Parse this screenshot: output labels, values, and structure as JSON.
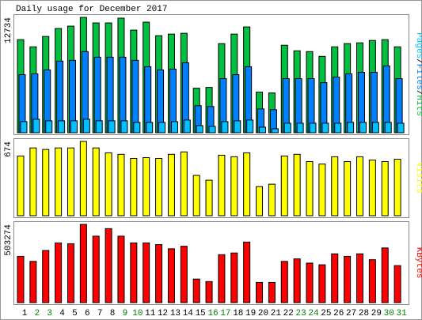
{
  "chart_data": [
    {
      "type": "bar",
      "title": "Daily usage for December 2017",
      "ylim": [
        0,
        12734
      ],
      "yticks": [
        12734
      ],
      "legend_separator": "/",
      "series": [
        {
          "name": "Pages",
          "color": "#00c0ff",
          "values": [
            1229,
            1493,
            1317,
            1317,
            1317,
            1493,
            1317,
            1317,
            1317,
            1142,
            1142,
            1142,
            1229,
            1405,
            790,
            703,
            1229,
            1317,
            1405,
            615,
            439,
            1054,
            1054,
            1054,
            1054,
            1054,
            1142,
            1142,
            1142,
            1142,
            1054
          ]
        },
        {
          "name": "Files",
          "color": "#0080ff",
          "values": [
            6411,
            6499,
            6938,
            7904,
            7992,
            8958,
            8343,
            8343,
            8343,
            7992,
            7289,
            6938,
            7026,
            7728,
            2986,
            2898,
            5972,
            6411,
            7289,
            2635,
            2547,
            5972,
            5972,
            5972,
            5533,
            6147,
            6499,
            6674,
            6674,
            7377,
            5972
          ]
        },
        {
          "name": "Hits",
          "color": "#00c040",
          "values": [
            10275,
            9485,
            10626,
            11505,
            11768,
            12734,
            12119,
            12119,
            12650,
            11329,
            12207,
            10714,
            10890,
            10978,
            4918,
            5006,
            9836,
            10890,
            11680,
            4479,
            4391,
            9660,
            9046,
            8958,
            8431,
            9485,
            9836,
            9924,
            10187,
            10275,
            9485
          ]
        }
      ]
    },
    {
      "type": "bar",
      "ylim": [
        0,
        674
      ],
      "yticks": [
        674
      ],
      "series": [
        {
          "name": "Visits",
          "color": "#ffff00",
          "values": [
            542,
            615,
            601,
            615,
            615,
            674,
            615,
            571,
            557,
            520,
            527,
            520,
            557,
            579,
            366,
            322,
            549,
            535,
            571,
            264,
            286,
            542,
            557,
            491,
            469,
            535,
            491,
            535,
            505,
            491,
            513
          ]
        }
      ]
    },
    {
      "type": "bar",
      "ylim": [
        0,
        503274
      ],
      "yticks": [
        503274
      ],
      "categories": [
        "1",
        "2",
        "3",
        "4",
        "5",
        "6",
        "7",
        "8",
        "9",
        "10",
        "11",
        "12",
        "13",
        "14",
        "15",
        "16",
        "17",
        "18",
        "19",
        "20",
        "21",
        "22",
        "23",
        "24",
        "25",
        "26",
        "27",
        "28",
        "29",
        "30",
        "31"
      ],
      "category_colors": [
        "#000000",
        "#008000",
        "#008000",
        "#000000",
        "#000000",
        "#000000",
        "#000000",
        "#000000",
        "#008000",
        "#008000",
        "#000000",
        "#000000",
        "#000000",
        "#000000",
        "#000000",
        "#008000",
        "#008000",
        "#000000",
        "#000000",
        "#000000",
        "#000000",
        "#000000",
        "#008000",
        "#008000",
        "#000000",
        "#000000",
        "#000000",
        "#000000",
        "#000000",
        "#008000",
        "#008000"
      ],
      "series": [
        {
          "name": "KBytes",
          "color": "#ff0000",
          "values": [
            297633,
            265164,
            335513,
            384217,
            378805,
            503274,
            427509,
            476212,
            427509,
            384217,
            384217,
            373394,
            346336,
            362570,
            151522,
            135288,
            308456,
            319279,
            389628,
            129876,
            129876,
            265164,
            281398,
            254341,
            243518,
            313867,
            297633,
            313867,
            275987,
            351748,
            238106
          ]
        }
      ]
    }
  ]
}
